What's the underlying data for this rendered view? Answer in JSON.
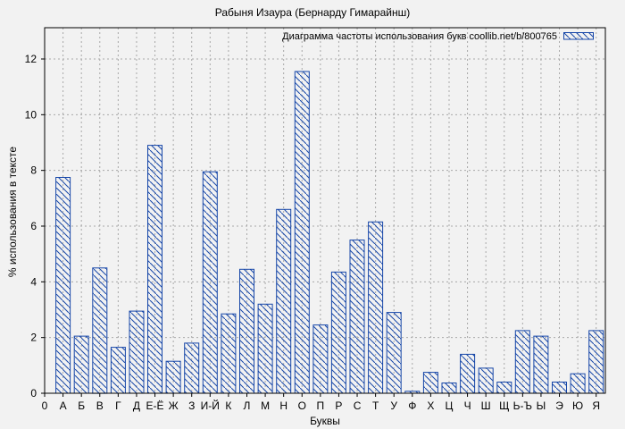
{
  "chart_data": {
    "type": "bar",
    "title": "Рабыня Изаура (Бернарду Гимарайнш)",
    "legend": "Диаграмма частоты использования букв coollib.net/b/800765",
    "legend_position": "top-right-inside",
    "xlabel": "Буквы",
    "ylabel": "% использования в тексте",
    "x_origin_tick_label": "0",
    "categories": [
      "А",
      "Б",
      "В",
      "Г",
      "Д",
      "Е-Ё",
      "Ж",
      "З",
      "И-Й",
      "К",
      "Л",
      "М",
      "Н",
      "О",
      "П",
      "Р",
      "С",
      "Т",
      "У",
      "Ф",
      "Х",
      "Ц",
      "Ч",
      "Ш",
      "Щ",
      "Ь-Ъ",
      "Ы",
      "Э",
      "Ю",
      "Я"
    ],
    "values": [
      7.75,
      2.05,
      4.5,
      1.65,
      2.95,
      8.9,
      1.15,
      1.8,
      7.95,
      2.85,
      4.45,
      3.2,
      6.6,
      11.55,
      2.45,
      4.35,
      5.5,
      6.15,
      2.9,
      0.07,
      0.75,
      0.37,
      1.4,
      0.9,
      0.4,
      2.25,
      2.05,
      0.4,
      0.7,
      2.25
    ],
    "yticks": [
      0,
      2,
      4,
      6,
      8,
      10,
      12
    ],
    "ylim": [
      0,
      13.1
    ],
    "grid": true,
    "bar_style": "hatched-diagonal",
    "colors": {
      "bar": "#1646a8",
      "background": "#f2f2f2",
      "grid": "#a8a8a8",
      "text": "#000000",
      "plot_border": "#000000"
    }
  }
}
